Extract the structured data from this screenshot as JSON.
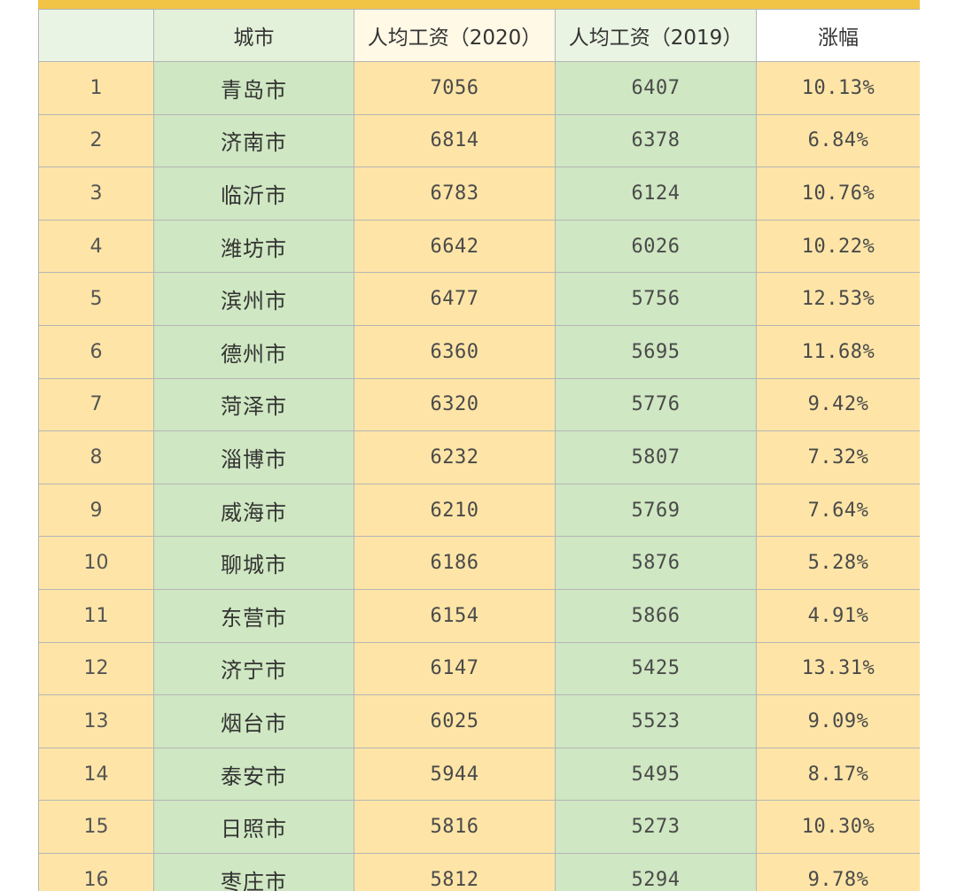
{
  "header": {
    "rank": "",
    "city": "城市",
    "wage_2020": "人均工资（2020）",
    "wage_2019": "人均工资（2019）",
    "rise": "涨幅"
  },
  "rows": [
    {
      "rank": "1",
      "city": "青岛市",
      "wage_2020": "7056",
      "wage_2019": "6407",
      "rise": "10.13%"
    },
    {
      "rank": "2",
      "city": "济南市",
      "wage_2020": "6814",
      "wage_2019": "6378",
      "rise": "6.84%"
    },
    {
      "rank": "3",
      "city": "临沂市",
      "wage_2020": "6783",
      "wage_2019": "6124",
      "rise": "10.76%"
    },
    {
      "rank": "4",
      "city": "潍坊市",
      "wage_2020": "6642",
      "wage_2019": "6026",
      "rise": "10.22%"
    },
    {
      "rank": "5",
      "city": "滨州市",
      "wage_2020": "6477",
      "wage_2019": "5756",
      "rise": "12.53%"
    },
    {
      "rank": "6",
      "city": "德州市",
      "wage_2020": "6360",
      "wage_2019": "5695",
      "rise": "11.68%"
    },
    {
      "rank": "7",
      "city": "菏泽市",
      "wage_2020": "6320",
      "wage_2019": "5776",
      "rise": "9.42%"
    },
    {
      "rank": "8",
      "city": "淄博市",
      "wage_2020": "6232",
      "wage_2019": "5807",
      "rise": "7.32%"
    },
    {
      "rank": "9",
      "city": "威海市",
      "wage_2020": "6210",
      "wage_2019": "5769",
      "rise": "7.64%"
    },
    {
      "rank": "10",
      "city": "聊城市",
      "wage_2020": "6186",
      "wage_2019": "5876",
      "rise": "5.28%"
    },
    {
      "rank": "11",
      "city": "东营市",
      "wage_2020": "6154",
      "wage_2019": "5866",
      "rise": "4.91%"
    },
    {
      "rank": "12",
      "city": "济宁市",
      "wage_2020": "6147",
      "wage_2019": "5425",
      "rise": "13.31%"
    },
    {
      "rank": "13",
      "city": "烟台市",
      "wage_2020": "6025",
      "wage_2019": "5523",
      "rise": "9.09%"
    },
    {
      "rank": "14",
      "city": "泰安市",
      "wage_2020": "5944",
      "wage_2019": "5495",
      "rise": "8.17%"
    },
    {
      "rank": "15",
      "city": "日照市",
      "wage_2020": "5816",
      "wage_2019": "5273",
      "rise": "10.30%"
    },
    {
      "rank": "16",
      "city": "枣庄市",
      "wage_2020": "5812",
      "wage_2019": "5294",
      "rise": "9.78%"
    }
  ],
  "colors": {
    "header_strip": "#f2c445",
    "yellow_cell": "#fee5a7",
    "green_cell": "#cfe7c2",
    "grid_line": "#b5b5b5"
  }
}
